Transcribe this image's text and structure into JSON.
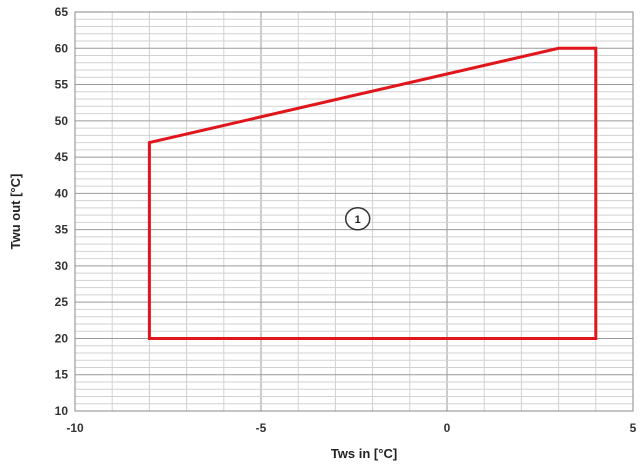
{
  "chart_data": {
    "type": "line",
    "xlabel": "Tws in [°C]",
    "ylabel": "Twu out [°C]",
    "xlim": [
      -10,
      5
    ],
    "ylim": [
      10,
      65
    ],
    "x_ticks": [
      -10,
      -5,
      0,
      5
    ],
    "y_ticks": [
      10,
      15,
      20,
      25,
      30,
      35,
      40,
      45,
      50,
      55,
      60,
      65
    ],
    "x_minor_step": 1,
    "y_minor_step": 1,
    "grid": true,
    "series": [
      {
        "closed": true,
        "color": "#e0161c",
        "points": [
          {
            "x": -8,
            "y": 20
          },
          {
            "x": -8,
            "y": 47
          },
          {
            "x": 3,
            "y": 60
          },
          {
            "x": 4,
            "y": 60
          },
          {
            "x": 4,
            "y": 20
          }
        ]
      }
    ],
    "annotations": [
      {
        "text": "1",
        "x": -2.4,
        "y": 36.5,
        "shape": "circle"
      }
    ]
  }
}
